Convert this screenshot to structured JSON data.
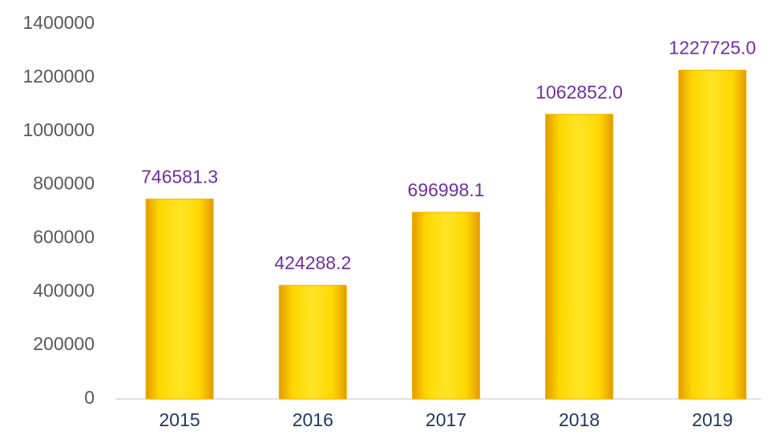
{
  "chart_data": {
    "type": "bar",
    "categories": [
      "2015",
      "2016",
      "2017",
      "2018",
      "2019"
    ],
    "values": [
      746581.3,
      424288.2,
      696998.1,
      1062852,
      1227725
    ],
    "value_labels": [
      "746581.3",
      "424288.2",
      "696998.1",
      "1062852.0",
      "1227725.0"
    ],
    "color": "#ffd700",
    "ylim": [
      0,
      1400000
    ],
    "yticks": [
      0,
      200000,
      400000,
      600000,
      800000,
      1000000,
      1200000,
      1400000
    ],
    "grid": false
  }
}
